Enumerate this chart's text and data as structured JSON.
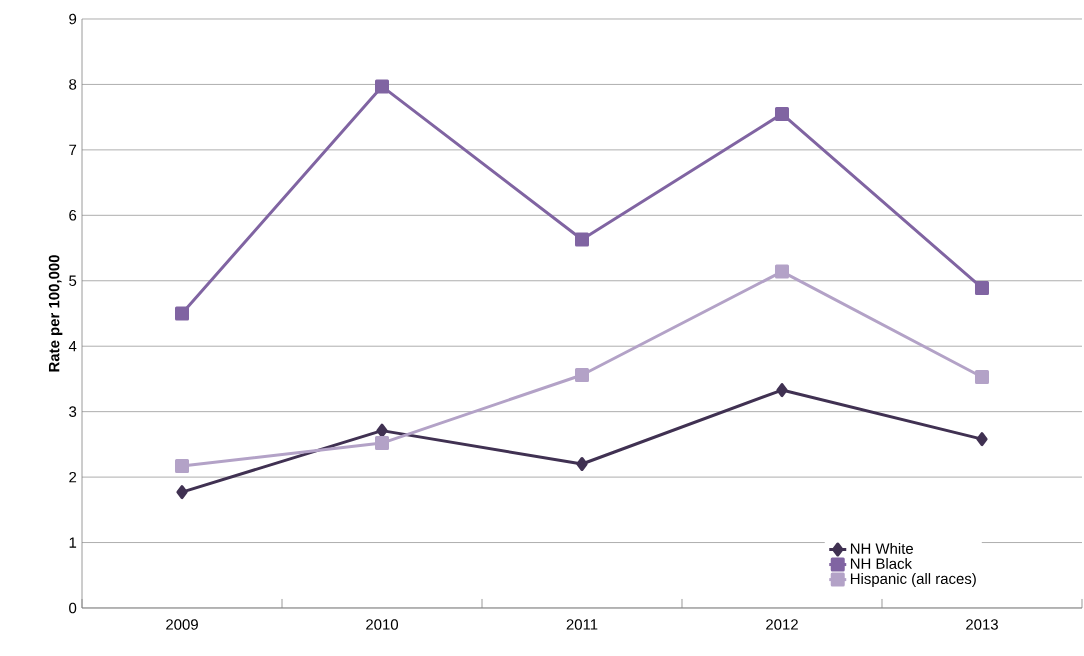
{
  "chart_data": {
    "type": "line",
    "ylabel": "**Rate per 100,000**",
    "categories": [
      "2009",
      "2010",
      "2011",
      "2012",
      "2013"
    ],
    "series": [
      {
        "name": "NH White",
        "color": "#403152",
        "marker": "diamond",
        "values": [
          1.77,
          2.71,
          2.2,
          3.33,
          2.58
        ]
      },
      {
        "name": "NH Black",
        "color": "#8064a2",
        "marker": "square",
        "values": [
          4.5,
          7.97,
          5.63,
          7.55,
          4.89
        ]
      },
      {
        "name": "Hispanic (all races)",
        "color": "#b3a2c7",
        "marker": "square",
        "values": [
          2.17,
          2.52,
          3.56,
          5.14,
          3.53
        ]
      }
    ],
    "ylim": [
      0,
      9
    ],
    "yticks": [
      0,
      1,
      2,
      3,
      4,
      5,
      6,
      7,
      8,
      9
    ],
    "grid": "y",
    "legend": "bottom right",
    "line_style": "solid"
  }
}
